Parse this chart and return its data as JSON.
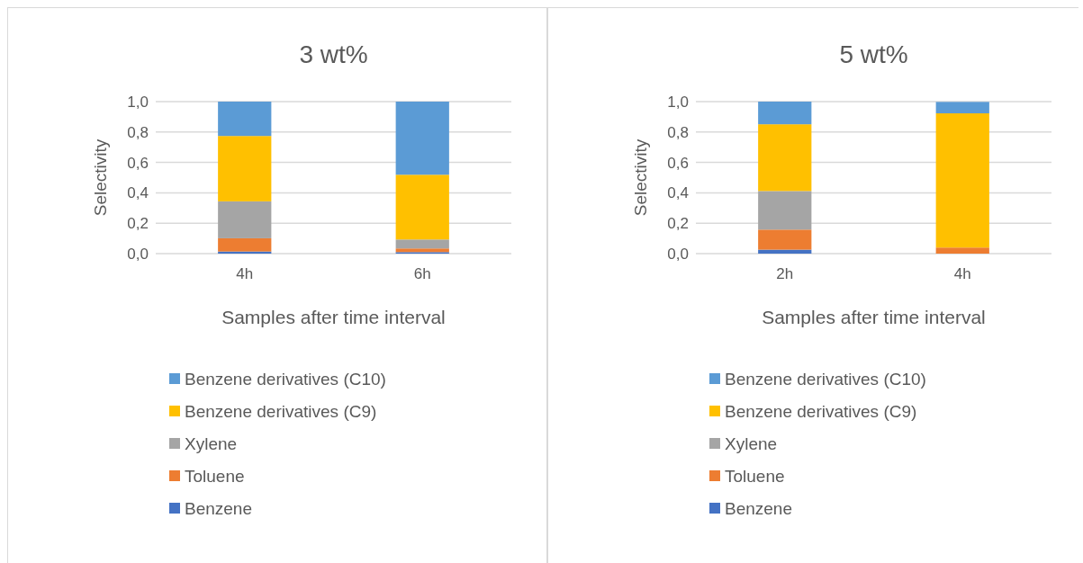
{
  "chart_data": [
    {
      "type": "bar",
      "stacked": true,
      "title": "3 wt%",
      "xlabel": "Samples after time interval",
      "ylabel": "Selectivity",
      "categories": [
        "4h",
        "6h"
      ],
      "ylim": [
        0,
        1
      ],
      "yticks": [
        {
          "value": 0,
          "label": "0,0"
        },
        {
          "value": 0.2,
          "label": "0,2"
        },
        {
          "value": 0.4,
          "label": "0,4"
        },
        {
          "value": 0.6,
          "label": "0,6"
        },
        {
          "value": 0.8,
          "label": "0,8"
        },
        {
          "value": 1,
          "label": "1,0"
        }
      ],
      "grid": "y",
      "legend": "bottom",
      "series": [
        {
          "name": "Benzene",
          "color": "#4472c4",
          "values": [
            0.014,
            0.01
          ]
        },
        {
          "name": "Toluene",
          "color": "#ed7d31",
          "values": [
            0.087,
            0.024
          ]
        },
        {
          "name": "Xylene",
          "color": "#a5a5a5",
          "values": [
            0.243,
            0.059
          ]
        },
        {
          "name": "Benzene derivatives (C9)",
          "color": "#ffc000",
          "values": [
            0.43,
            0.426
          ]
        },
        {
          "name": "Benzene derivatives (C10)",
          "color": "#5b9bd5",
          "values": [
            0.226,
            0.481
          ]
        }
      ]
    },
    {
      "type": "bar",
      "stacked": true,
      "title": "5 wt%",
      "xlabel": "Samples after time interval",
      "ylabel": "Selectivity",
      "categories": [
        "2h",
        "4h"
      ],
      "ylim": [
        0,
        1
      ],
      "yticks": [
        {
          "value": 0,
          "label": "0,0"
        },
        {
          "value": 0.2,
          "label": "0,2"
        },
        {
          "value": 0.4,
          "label": "0,4"
        },
        {
          "value": 0.6,
          "label": "0,6"
        },
        {
          "value": 0.8,
          "label": "0,8"
        },
        {
          "value": 1,
          "label": "1,0"
        }
      ],
      "grid": "y",
      "legend": "bottom",
      "series": [
        {
          "name": "Benzene",
          "color": "#4472c4",
          "values": [
            0.026,
            null
          ]
        },
        {
          "name": "Toluene",
          "color": "#ed7d31",
          "values": [
            0.132,
            0.04
          ]
        },
        {
          "name": "Xylene",
          "color": "#a5a5a5",
          "values": [
            0.254,
            0
          ]
        },
        {
          "name": "Benzene derivatives (C9)",
          "color": "#ffc000",
          "values": [
            0.439,
            0.883
          ]
        },
        {
          "name": "Benzene derivatives (C10)",
          "color": "#5b9bd5",
          "values": [
            0.149,
            0.075
          ]
        }
      ]
    }
  ]
}
